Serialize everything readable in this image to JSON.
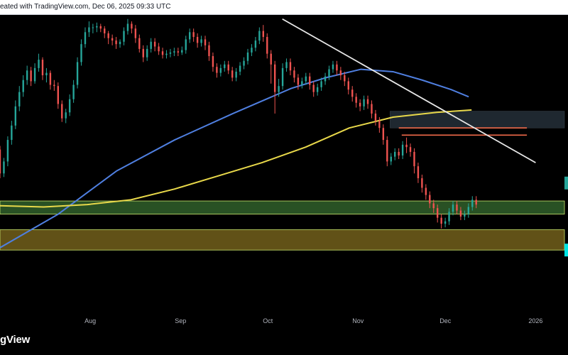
{
  "header": {
    "text": "eated with TradingView.com, Dec 06, 2025 09:33 UTC"
  },
  "footer": {
    "logo_text": "gView"
  },
  "colors": {
    "background": "#000000",
    "up_candle": "#26a69a",
    "down_candle": "#ef5350",
    "ma_fast": "#4f7fe0",
    "ma_slow": "#e8d84a",
    "trendline": "#e8e8e8",
    "resistance": "#ef6a4a",
    "zone_gray": "#2a3540",
    "zone_green": "#2d5a28",
    "zone_olive": "#6b5a1a",
    "axis_text": "#b2b5be"
  },
  "chart_data": {
    "type": "candlestick",
    "x_axis": {
      "ticks": [
        {
          "label": "Aug",
          "day": 31
        },
        {
          "label": "Sep",
          "day": 62
        },
        {
          "label": "Oct",
          "day": 92
        },
        {
          "label": "Nov",
          "day": 123
        },
        {
          "label": "Dec",
          "day": 153
        },
        {
          "label": "2026",
          "day": 184
        }
      ],
      "range_days": [
        0,
        200
      ]
    },
    "y_range": [
      90,
      345
    ],
    "candles": [
      [
        232,
        212,
        235,
        208
      ],
      [
        212,
        222,
        225,
        209
      ],
      [
        222,
        240,
        243,
        218
      ],
      [
        240,
        252,
        256,
        236
      ],
      [
        252,
        268,
        273,
        249
      ],
      [
        268,
        280,
        285,
        264
      ],
      [
        280,
        290,
        294,
        276
      ],
      [
        290,
        298,
        302,
        286
      ],
      [
        298,
        289,
        301,
        285
      ],
      [
        289,
        300,
        304,
        287
      ],
      [
        300,
        307,
        312,
        297
      ],
      [
        307,
        294,
        309,
        290
      ],
      [
        294,
        296,
        300,
        288
      ],
      [
        296,
        286,
        298,
        282
      ],
      [
        286,
        285,
        290,
        281
      ],
      [
        285,
        270,
        288,
        266
      ],
      [
        270,
        258,
        273,
        255
      ],
      [
        258,
        263,
        266,
        254
      ],
      [
        263,
        274,
        278,
        260
      ],
      [
        274,
        286,
        290,
        271
      ],
      [
        286,
        305,
        309,
        283
      ],
      [
        305,
        320,
        324,
        302
      ],
      [
        320,
        330,
        334,
        317
      ],
      [
        330,
        334,
        339,
        326
      ],
      [
        334,
        334,
        337,
        329
      ],
      [
        334,
        335,
        338,
        330
      ],
      [
        335,
        333,
        337,
        330
      ],
      [
        333,
        329,
        335,
        325
      ],
      [
        329,
        325,
        331,
        320
      ],
      [
        325,
        323,
        328,
        319
      ],
      [
        323,
        320,
        326,
        316
      ],
      [
        320,
        322,
        324,
        317
      ],
      [
        322,
        331,
        334,
        319
      ],
      [
        331,
        337,
        341,
        328
      ],
      [
        337,
        333,
        339,
        329
      ],
      [
        333,
        325,
        336,
        321
      ],
      [
        325,
        316,
        328,
        313
      ],
      [
        316,
        309,
        319,
        305
      ],
      [
        309,
        316,
        319,
        306
      ],
      [
        316,
        322,
        325,
        313
      ],
      [
        322,
        318,
        325,
        314
      ],
      [
        318,
        314,
        321,
        311
      ],
      [
        314,
        311,
        317,
        308
      ],
      [
        311,
        312,
        315,
        308
      ],
      [
        312,
        313,
        316,
        309
      ],
      [
        313,
        314,
        317,
        310
      ],
      [
        314,
        313,
        317,
        310
      ],
      [
        313,
        315,
        318,
        311
      ],
      [
        315,
        324,
        327,
        312
      ],
      [
        324,
        330,
        333,
        321
      ],
      [
        330,
        326,
        333,
        322
      ],
      [
        326,
        321,
        329,
        317
      ],
      [
        321,
        324,
        327,
        318
      ],
      [
        324,
        319,
        327,
        315
      ],
      [
        319,
        310,
        322,
        306
      ],
      [
        310,
        301,
        313,
        297
      ],
      [
        301,
        296,
        304,
        292
      ],
      [
        296,
        300,
        303,
        293
      ],
      [
        300,
        303,
        306,
        297
      ],
      [
        303,
        298,
        306,
        295
      ],
      [
        298,
        292,
        301,
        289
      ],
      [
        292,
        297,
        300,
        289
      ],
      [
        297,
        302,
        305,
        294
      ],
      [
        302,
        306,
        309,
        299
      ],
      [
        306,
        313,
        316,
        303
      ],
      [
        313,
        317,
        320,
        310
      ],
      [
        317,
        323,
        326,
        314
      ],
      [
        323,
        331,
        334,
        320
      ],
      [
        331,
        326,
        336,
        322
      ],
      [
        326,
        312,
        329,
        308
      ],
      [
        312,
        303,
        315,
        287
      ],
      [
        303,
        280,
        306,
        262
      ],
      [
        280,
        285,
        291,
        276
      ],
      [
        285,
        300,
        304,
        282
      ],
      [
        300,
        305,
        308,
        297
      ],
      [
        305,
        298,
        308,
        294
      ],
      [
        298,
        292,
        301,
        288
      ],
      [
        292,
        286,
        295,
        282
      ],
      [
        286,
        289,
        292,
        283
      ],
      [
        289,
        293,
        296,
        286
      ],
      [
        293,
        286,
        296,
        282
      ],
      [
        286,
        280,
        289,
        276
      ],
      [
        280,
        284,
        287,
        277
      ],
      [
        284,
        289,
        292,
        281
      ],
      [
        289,
        293,
        296,
        286
      ],
      [
        293,
        299,
        302,
        290
      ],
      [
        299,
        303,
        306,
        296
      ],
      [
        303,
        298,
        306,
        294
      ],
      [
        298,
        294,
        301,
        290
      ],
      [
        294,
        289,
        297,
        285
      ],
      [
        289,
        282,
        292,
        278
      ],
      [
        282,
        276,
        285,
        272
      ],
      [
        276,
        271,
        279,
        267
      ],
      [
        271,
        268,
        274,
        264
      ],
      [
        268,
        274,
        277,
        265
      ],
      [
        274,
        270,
        277,
        266
      ],
      [
        270,
        262,
        273,
        258
      ],
      [
        262,
        256,
        265,
        252
      ],
      [
        256,
        250,
        259,
        246
      ],
      [
        250,
        240,
        253,
        236
      ],
      [
        240,
        222,
        243,
        218
      ],
      [
        222,
        226,
        229,
        219
      ],
      [
        226,
        230,
        233,
        223
      ],
      [
        230,
        227,
        233,
        224
      ],
      [
        227,
        236,
        239,
        224
      ],
      [
        236,
        234,
        242,
        229
      ],
      [
        234,
        230,
        237,
        226
      ],
      [
        230,
        218,
        233,
        212
      ],
      [
        218,
        208,
        221,
        204
      ],
      [
        208,
        200,
        211,
        196
      ],
      [
        200,
        194,
        203,
        190
      ],
      [
        194,
        187,
        197,
        183
      ],
      [
        187,
        183,
        190,
        179
      ],
      [
        183,
        175,
        186,
        171
      ],
      [
        175,
        170,
        178,
        166
      ],
      [
        170,
        172,
        175,
        167
      ],
      [
        172,
        180,
        183,
        169
      ],
      [
        180,
        186,
        189,
        177
      ],
      [
        186,
        181,
        189,
        178
      ],
      [
        181,
        176,
        184,
        173
      ],
      [
        176,
        178,
        181,
        173
      ],
      [
        178,
        184,
        187,
        175
      ],
      [
        184,
        190,
        193,
        181
      ],
      [
        190,
        186,
        193,
        183
      ]
    ],
    "candle_start_day": 0,
    "candle_step_days": 1.33,
    "moving_averages": [
      {
        "key": "ma_fast",
        "points": [
          [
            0,
            150
          ],
          [
            20,
            178
          ],
          [
            40,
            214
          ],
          [
            60,
            240
          ],
          [
            80,
            262
          ],
          [
            100,
            283
          ],
          [
            112,
            292
          ],
          [
            124,
            299
          ],
          [
            135,
            297
          ],
          [
            145,
            290
          ],
          [
            155,
            282
          ],
          [
            161,
            276
          ]
        ]
      },
      {
        "key": "ma_slow",
        "points": [
          [
            0,
            185
          ],
          [
            15,
            184
          ],
          [
            30,
            186
          ],
          [
            45,
            190
          ],
          [
            60,
            199
          ],
          [
            75,
            210
          ],
          [
            90,
            221
          ],
          [
            105,
            234
          ],
          [
            120,
            250
          ],
          [
            135,
            259
          ],
          [
            150,
            263
          ],
          [
            162,
            265
          ]
        ]
      }
    ],
    "trendline": {
      "start": [
        97,
        341
      ],
      "end": [
        184,
        221
      ]
    },
    "resistance_lines": [
      {
        "y": 250,
        "day_start": 137,
        "day_end": 181
      },
      {
        "y": 244,
        "day_start": 138,
        "day_end": 181
      }
    ],
    "zones": [
      {
        "key": "zone_gray",
        "y_top": 264,
        "y_bottom": 250,
        "day_start": 134,
        "day_end": 196
      },
      {
        "key": "zone_green",
        "y_top": 189,
        "y_bottom": 178,
        "day_start": 0,
        "day_end": 196
      },
      {
        "key": "zone_olive",
        "y_top": 165,
        "y_bottom": 148,
        "day_start": 0,
        "day_end": 196
      }
    ],
    "right_markers": [
      {
        "y": 204,
        "color": "#26a69a"
      },
      {
        "y": 148,
        "color": "#00e5e5"
      }
    ]
  }
}
